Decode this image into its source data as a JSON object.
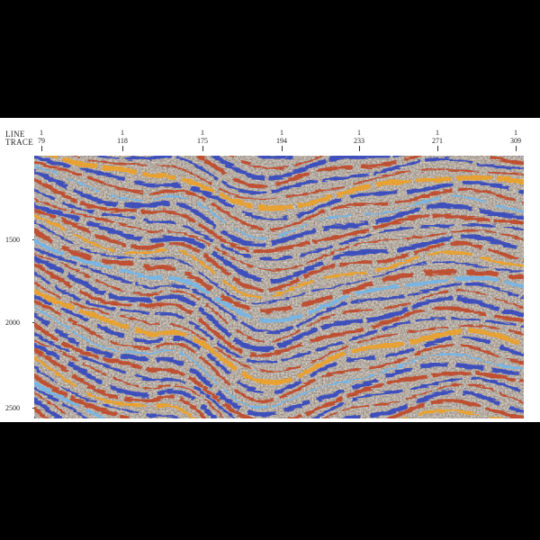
{
  "header": {
    "line_label": "LINE",
    "trace_label": "TRACE"
  },
  "columns": [
    {
      "line": "1",
      "trace": "79"
    },
    {
      "line": "1",
      "trace": "118"
    },
    {
      "line": "1",
      "trace": "175"
    },
    {
      "line": "1",
      "trace": "194"
    },
    {
      "line": "1",
      "trace": "233"
    },
    {
      "line": "1",
      "trace": "271"
    },
    {
      "line": "1",
      "trace": "309"
    }
  ],
  "depth_ticks": [
    "1500",
    "2000",
    "2500"
  ],
  "colors": {
    "background": "#000000",
    "panel": "#ffffff",
    "noise": "#b9ada0",
    "red": "#c0401f",
    "orange": "#f0a020",
    "blue": "#2a3fc0",
    "light_blue": "#6fb6ee"
  }
}
